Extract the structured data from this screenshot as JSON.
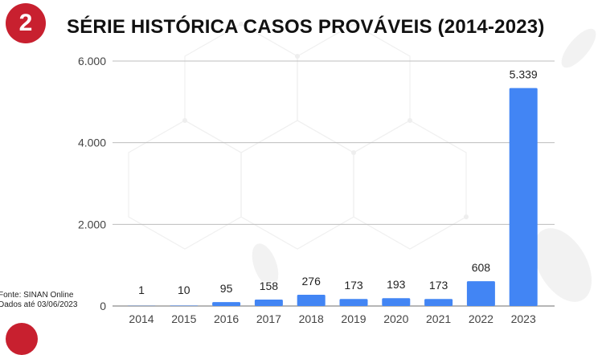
{
  "header": {
    "badge_number": "2",
    "title": "SÉRIE HISTÓRICA CASOS PROVÁVEIS (2014-2023)"
  },
  "footer": {
    "source_line1": "Fonte: SINAN Online",
    "source_line2": "Dados até 03/06/2023"
  },
  "colors": {
    "bar": "#4285f4",
    "badge": "#c8202f",
    "grid": "#bdbdbd"
  },
  "chart_data": {
    "type": "bar",
    "title": "SÉRIE HISTÓRICA CASOS PROVÁVEIS (2014-2023)",
    "categories": [
      "2014",
      "2015",
      "2016",
      "2017",
      "2018",
      "2019",
      "2020",
      "2021",
      "2022",
      "2023"
    ],
    "values": [
      1,
      10,
      95,
      158,
      276,
      173,
      193,
      173,
      608,
      5339
    ],
    "value_labels": [
      "1",
      "10",
      "95",
      "158",
      "276",
      "173",
      "193",
      "173",
      "608",
      "5.339"
    ],
    "ylim": [
      0,
      6000
    ],
    "yticks": [
      0,
      2000,
      4000,
      6000
    ],
    "ytick_labels": [
      "0",
      "2.000",
      "4.000",
      "6.000"
    ],
    "grid": true,
    "legend": "none"
  }
}
